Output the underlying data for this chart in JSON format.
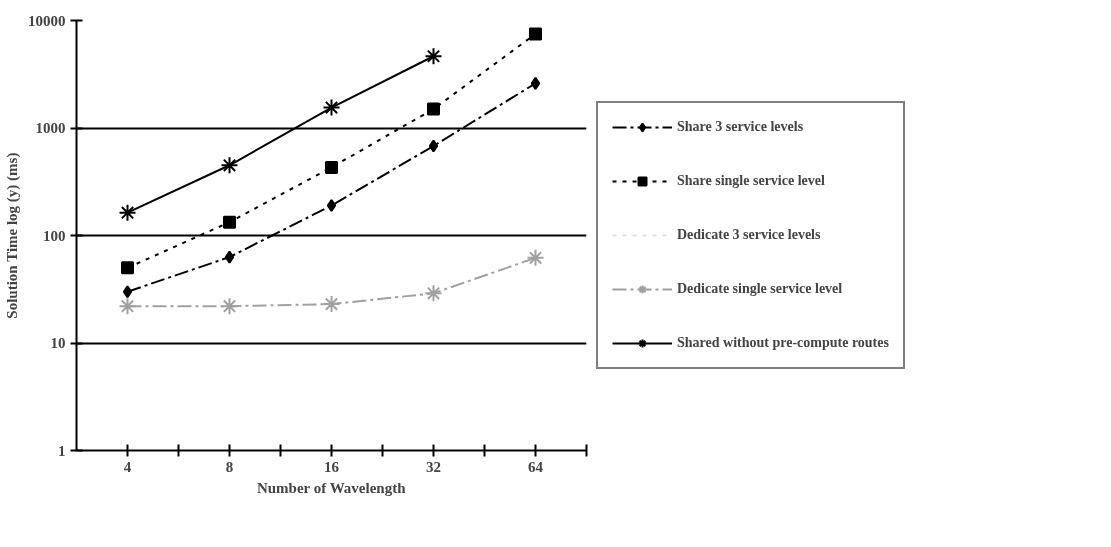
{
  "chart_data": {
    "type": "line",
    "xlabel": "Number of Wavelength",
    "ylabel": "Solution Time log (y) (ms)",
    "categories": [
      "4",
      "8",
      "16",
      "32",
      "64"
    ],
    "log": "y",
    "ylim": [
      1,
      10000
    ],
    "yticks": [
      1,
      10,
      100,
      1000,
      10000
    ],
    "grid": "y",
    "legend": "right",
    "series": [
      {
        "name": "Share 3 service levels",
        "color": "#000000",
        "line_style": "dashed",
        "marker": "diamond",
        "values": [
          30,
          63,
          190,
          680,
          2600
        ]
      },
      {
        "name": "Share single service level",
        "color": "#000000",
        "line_style": "dotted",
        "marker": "square",
        "values": [
          50,
          133,
          430,
          1500,
          7500
        ]
      },
      {
        "name": "Dedicate 3 service levels",
        "color": "#e0e0e0",
        "line_style": "dotted",
        "marker": "none",
        "values": [
          null,
          null,
          null,
          null,
          null
        ]
      },
      {
        "name": "Dedicate single service level",
        "color": "#a0a0a0",
        "line_style": "dashed",
        "marker": "cross",
        "values": [
          22,
          22,
          23,
          29,
          62
        ]
      },
      {
        "name": "Shared without pre-compute routes",
        "color": "#000000",
        "line_style": "solid",
        "marker": "cross",
        "values": [
          163,
          450,
          1550,
          4650,
          null
        ]
      }
    ]
  }
}
